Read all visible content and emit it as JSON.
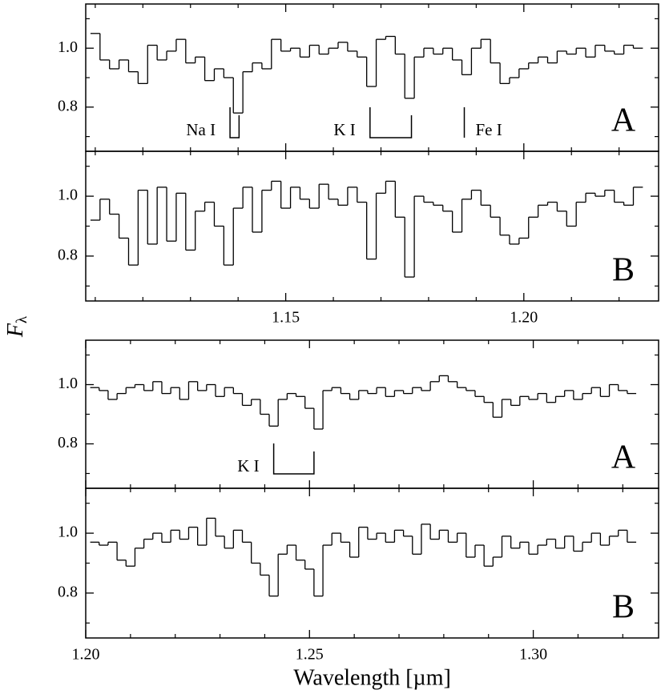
{
  "ylabel": {
    "text": "F",
    "subscript": "λ"
  },
  "chart_data": [
    {
      "type": "line",
      "drawstyle": "steps-mid",
      "color": "#000000",
      "panel_label": "A",
      "xlim": [
        1.108,
        1.2283
      ],
      "ylim": [
        0.65,
        1.15
      ],
      "xticks": [
        1.15,
        {
          "value": 1.2,
          "label": "1.20"
        }
      ],
      "xtick_labels": false,
      "xminorticks": [
        1.11,
        1.12,
        1.13,
        1.14,
        1.16,
        1.17,
        1.18,
        1.19,
        1.21,
        1.22
      ],
      "yticks": [
        0.8,
        {
          "value": 1,
          "label": "1.0"
        }
      ],
      "yminorticks": [
        0.7,
        0.9,
        1.1
      ],
      "x": [
        1.11,
        1.112,
        1.114,
        1.116,
        1.118,
        1.12,
        1.122,
        1.124,
        1.126,
        1.128,
        1.13,
        1.132,
        1.134,
        1.136,
        1.138,
        1.14,
        1.142,
        1.144,
        1.146,
        1.148,
        1.15,
        1.152,
        1.154,
        1.156,
        1.158,
        1.16,
        1.162,
        1.164,
        1.166,
        1.168,
        1.17,
        1.172,
        1.174,
        1.176,
        1.178,
        1.18,
        1.182,
        1.184,
        1.186,
        1.188,
        1.19,
        1.192,
        1.194,
        1.196,
        1.198,
        1.2,
        1.202,
        1.204,
        1.206,
        1.208,
        1.21,
        1.212,
        1.214,
        1.216,
        1.218,
        1.22,
        1.222,
        1.224
      ],
      "values": [
        1.05,
        0.96,
        0.93,
        0.96,
        0.92,
        0.88,
        1.01,
        0.96,
        0.99,
        1.03,
        0.95,
        0.97,
        0.89,
        0.93,
        0.9,
        0.78,
        0.92,
        0.95,
        0.93,
        1.03,
        0.99,
        1.0,
        0.97,
        1.01,
        0.98,
        1.0,
        1.02,
        0.99,
        0.97,
        0.87,
        1.03,
        1.04,
        0.98,
        0.83,
        0.97,
        1.0,
        0.98,
        1.0,
        0.96,
        0.91,
        1.0,
        1.03,
        0.95,
        0.88,
        0.9,
        0.93,
        0.95,
        0.97,
        0.95,
        0.99,
        0.98,
        1.0,
        0.97,
        1.01,
        0.99,
        0.98,
        1.01,
        1.0
      ],
      "lines": [
        {
          "label": "Na I",
          "wavelengths": [
            1.1383,
            1.1402
          ],
          "label_side": "left"
        },
        {
          "label": "K I",
          "wavelengths": [
            1.1677,
            1.1764
          ],
          "label_side": "left"
        },
        {
          "label": "Fe I",
          "wavelengths": [
            1.1875
          ],
          "label_side": "right"
        }
      ]
    },
    {
      "type": "line",
      "drawstyle": "steps-mid",
      "color": "#000000",
      "panel_label": "B",
      "xlim": [
        1.108,
        1.2283
      ],
      "ylim": [
        0.65,
        1.15
      ],
      "xticks": [
        1.15,
        {
          "value": 1.2,
          "label": "1.20"
        }
      ],
      "xtick_labels": true,
      "xminorticks": [
        1.11,
        1.12,
        1.13,
        1.14,
        1.16,
        1.17,
        1.18,
        1.19,
        1.21,
        1.22
      ],
      "yticks": [
        0.8,
        {
          "value": 1,
          "label": "1.0"
        }
      ],
      "yminorticks": [
        0.7,
        0.9,
        1.1
      ],
      "x": [
        1.11,
        1.112,
        1.114,
        1.116,
        1.118,
        1.12,
        1.122,
        1.124,
        1.126,
        1.128,
        1.13,
        1.132,
        1.134,
        1.136,
        1.138,
        1.14,
        1.142,
        1.144,
        1.146,
        1.148,
        1.15,
        1.152,
        1.154,
        1.156,
        1.158,
        1.16,
        1.162,
        1.164,
        1.166,
        1.168,
        1.17,
        1.172,
        1.174,
        1.176,
        1.178,
        1.18,
        1.182,
        1.184,
        1.186,
        1.188,
        1.19,
        1.192,
        1.194,
        1.196,
        1.198,
        1.2,
        1.202,
        1.204,
        1.206,
        1.208,
        1.21,
        1.212,
        1.214,
        1.216,
        1.218,
        1.22,
        1.222,
        1.224
      ],
      "values": [
        0.92,
        0.99,
        0.94,
        0.86,
        0.77,
        1.02,
        0.84,
        1.03,
        0.85,
        1.01,
        0.82,
        0.95,
        0.98,
        0.9,
        0.77,
        0.96,
        1.03,
        0.88,
        1.02,
        1.05,
        0.96,
        1.03,
        0.99,
        0.96,
        1.04,
        0.99,
        0.97,
        1.03,
        0.98,
        0.79,
        1.01,
        1.05,
        0.93,
        0.73,
        1.0,
        0.98,
        0.97,
        0.95,
        0.88,
        0.99,
        1.02,
        0.97,
        0.93,
        0.87,
        0.84,
        0.86,
        0.93,
        0.97,
        0.98,
        0.95,
        0.9,
        0.98,
        1.01,
        1.0,
        1.02,
        0.98,
        0.97,
        1.03
      ]
    },
    {
      "type": "line",
      "drawstyle": "steps-mid",
      "color": "#000000",
      "panel_label": "A",
      "xlim": [
        1.2,
        1.328
      ],
      "ylim": [
        0.65,
        1.15
      ],
      "xticks": [
        {
          "value": 1.2,
          "label": "1.20"
        },
        1.25,
        {
          "value": 1.3,
          "label": "1.30"
        }
      ],
      "xtick_labels": false,
      "xminorticks": [
        1.21,
        1.22,
        1.23,
        1.24,
        1.26,
        1.27,
        1.28,
        1.29,
        1.31,
        1.32
      ],
      "yticks": [
        0.8,
        {
          "value": 1,
          "label": "1.0"
        }
      ],
      "yminorticks": [
        0.7,
        0.9,
        1.1
      ],
      "x": [
        1.202,
        1.204,
        1.206,
        1.208,
        1.21,
        1.212,
        1.214,
        1.216,
        1.218,
        1.22,
        1.222,
        1.224,
        1.226,
        1.228,
        1.23,
        1.232,
        1.234,
        1.236,
        1.238,
        1.24,
        1.242,
        1.244,
        1.246,
        1.248,
        1.25,
        1.252,
        1.254,
        1.256,
        1.258,
        1.26,
        1.262,
        1.264,
        1.266,
        1.268,
        1.27,
        1.272,
        1.274,
        1.276,
        1.278,
        1.28,
        1.282,
        1.284,
        1.286,
        1.288,
        1.29,
        1.292,
        1.294,
        1.296,
        1.298,
        1.3,
        1.302,
        1.304,
        1.306,
        1.308,
        1.31,
        1.312,
        1.314,
        1.316,
        1.318,
        1.32,
        1.322
      ],
      "values": [
        0.99,
        0.98,
        0.95,
        0.97,
        0.99,
        1.0,
        0.98,
        1.01,
        0.97,
        0.99,
        0.95,
        1.01,
        0.98,
        1.0,
        0.96,
        0.99,
        0.97,
        0.93,
        0.95,
        0.9,
        0.86,
        0.95,
        0.97,
        0.96,
        0.92,
        0.85,
        0.98,
        0.99,
        0.97,
        0.95,
        0.98,
        0.97,
        0.99,
        0.96,
        0.98,
        0.97,
        0.99,
        0.98,
        1.01,
        1.03,
        1.01,
        0.99,
        0.98,
        0.96,
        0.94,
        0.89,
        0.95,
        0.93,
        0.96,
        0.95,
        0.97,
        0.94,
        0.96,
        0.98,
        0.95,
        0.97,
        0.99,
        0.96,
        1.0,
        0.98,
        0.97
      ],
      "lines": [
        {
          "label": "K I",
          "wavelengths": [
            1.242,
            1.251
          ],
          "label_side": "left"
        }
      ]
    },
    {
      "type": "line",
      "drawstyle": "steps-mid",
      "color": "#000000",
      "panel_label": "B",
      "xlim": [
        1.2,
        1.328
      ],
      "ylim": [
        0.65,
        1.15
      ],
      "xticks": [
        {
          "value": 1.2,
          "label": "1.20"
        },
        1.25,
        {
          "value": 1.3,
          "label": "1.30"
        }
      ],
      "xtick_labels": true,
      "xminorticks": [
        1.21,
        1.22,
        1.23,
        1.24,
        1.26,
        1.27,
        1.28,
        1.29,
        1.31,
        1.32
      ],
      "yticks": [
        0.8,
        {
          "value": 1,
          "label": "1.0"
        }
      ],
      "yminorticks": [
        0.7,
        0.9,
        1.1
      ],
      "xlabel": "Wavelength [µm]",
      "x": [
        1.202,
        1.204,
        1.206,
        1.208,
        1.21,
        1.212,
        1.214,
        1.216,
        1.218,
        1.22,
        1.222,
        1.224,
        1.226,
        1.228,
        1.23,
        1.232,
        1.234,
        1.236,
        1.238,
        1.24,
        1.242,
        1.244,
        1.246,
        1.248,
        1.25,
        1.252,
        1.254,
        1.256,
        1.258,
        1.26,
        1.262,
        1.264,
        1.266,
        1.268,
        1.27,
        1.272,
        1.274,
        1.276,
        1.278,
        1.28,
        1.282,
        1.284,
        1.286,
        1.288,
        1.29,
        1.292,
        1.294,
        1.296,
        1.298,
        1.3,
        1.302,
        1.304,
        1.306,
        1.308,
        1.31,
        1.312,
        1.314,
        1.316,
        1.318,
        1.32,
        1.322
      ],
      "values": [
        0.97,
        0.96,
        0.97,
        0.91,
        0.89,
        0.95,
        0.98,
        1.0,
        0.97,
        1.01,
        0.98,
        1.02,
        0.96,
        1.05,
        0.99,
        0.95,
        1.01,
        0.97,
        0.9,
        0.86,
        0.79,
        0.93,
        0.96,
        0.91,
        0.88,
        0.79,
        0.96,
        1.0,
        0.97,
        0.92,
        1.02,
        0.98,
        1.0,
        0.97,
        1.01,
        0.99,
        0.93,
        1.03,
        0.98,
        1.01,
        0.97,
        1.0,
        0.92,
        0.96,
        0.89,
        0.92,
        0.99,
        0.95,
        0.97,
        0.93,
        0.96,
        0.98,
        0.95,
        0.99,
        0.94,
        0.97,
        1.0,
        0.96,
        0.99,
        1.01,
        0.97
      ]
    }
  ]
}
